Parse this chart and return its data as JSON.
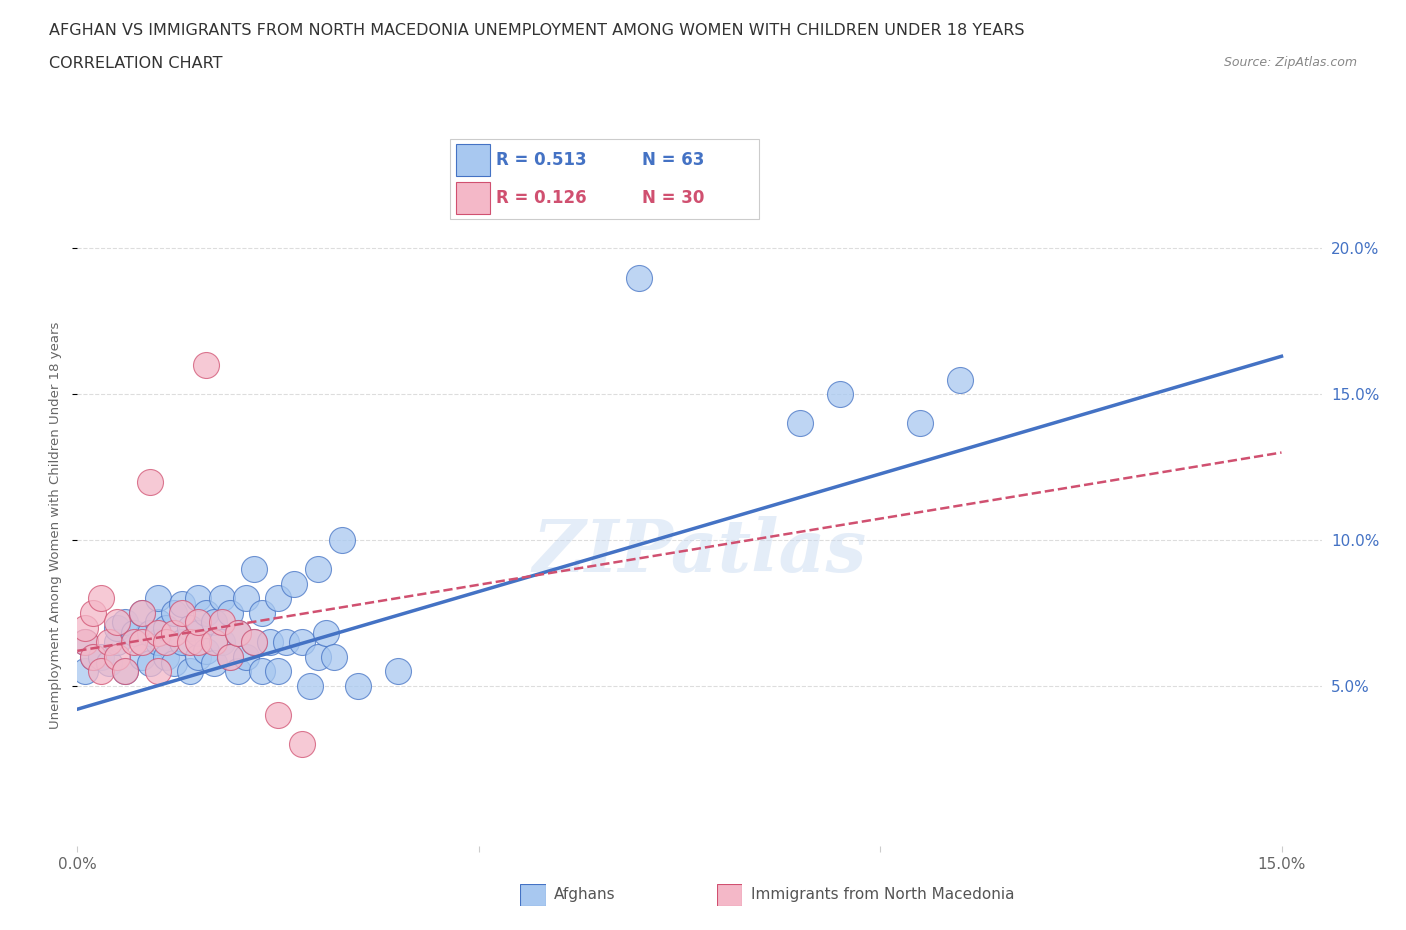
{
  "title_line1": "AFGHAN VS IMMIGRANTS FROM NORTH MACEDONIA UNEMPLOYMENT AMONG WOMEN WITH CHILDREN UNDER 18 YEARS",
  "title_line2": "CORRELATION CHART",
  "source": "Source: ZipAtlas.com",
  "ylabel": "Unemployment Among Women with Children Under 18 years",
  "xlim": [
    0.0,
    0.155
  ],
  "ylim": [
    -0.005,
    0.215
  ],
  "xticks": [
    0.0,
    0.05,
    0.1,
    0.15
  ],
  "xtick_labels": [
    "0.0%",
    "",
    "",
    "15.0%"
  ],
  "yticks": [
    0.05,
    0.1,
    0.15,
    0.2
  ],
  "ytick_labels": [
    "5.0%",
    "10.0%",
    "15.0%",
    "20.0%"
  ],
  "legend_R1": "0.513",
  "legend_N1": "63",
  "legend_R2": "0.126",
  "legend_N2": "30",
  "color_afghan": "#a8c8f0",
  "color_afghan_edge": "#4472c4",
  "color_macedonia": "#f4b8c8",
  "color_macedonia_edge": "#d05070",
  "color_line_blue": "#4472c4",
  "color_line_pink": "#d05070",
  "watermark": "ZIPatlas",
  "afghans_x": [
    0.001,
    0.001,
    0.002,
    0.003,
    0.004,
    0.005,
    0.005,
    0.006,
    0.006,
    0.007,
    0.008,
    0.008,
    0.009,
    0.009,
    0.01,
    0.01,
    0.01,
    0.011,
    0.011,
    0.012,
    0.012,
    0.013,
    0.013,
    0.014,
    0.014,
    0.015,
    0.015,
    0.015,
    0.016,
    0.016,
    0.017,
    0.017,
    0.018,
    0.018,
    0.019,
    0.019,
    0.02,
    0.02,
    0.021,
    0.021,
    0.022,
    0.022,
    0.023,
    0.023,
    0.024,
    0.025,
    0.025,
    0.026,
    0.027,
    0.028,
    0.029,
    0.03,
    0.03,
    0.031,
    0.032,
    0.033,
    0.035,
    0.04,
    0.07,
    0.09,
    0.095,
    0.105,
    0.11
  ],
  "afghans_y": [
    0.055,
    0.065,
    0.06,
    0.06,
    0.058,
    0.065,
    0.07,
    0.055,
    0.072,
    0.068,
    0.06,
    0.075,
    0.058,
    0.068,
    0.065,
    0.072,
    0.08,
    0.06,
    0.07,
    0.058,
    0.075,
    0.065,
    0.078,
    0.055,
    0.07,
    0.06,
    0.068,
    0.08,
    0.062,
    0.075,
    0.058,
    0.072,
    0.065,
    0.08,
    0.06,
    0.075,
    0.055,
    0.068,
    0.06,
    0.08,
    0.065,
    0.09,
    0.055,
    0.075,
    0.065,
    0.055,
    0.08,
    0.065,
    0.085,
    0.065,
    0.05,
    0.06,
    0.09,
    0.068,
    0.06,
    0.1,
    0.05,
    0.055,
    0.19,
    0.14,
    0.15,
    0.14,
    0.155
  ],
  "macedonia_x": [
    0.001,
    0.001,
    0.002,
    0.002,
    0.003,
    0.003,
    0.004,
    0.005,
    0.005,
    0.006,
    0.007,
    0.008,
    0.008,
    0.009,
    0.01,
    0.01,
    0.011,
    0.012,
    0.013,
    0.014,
    0.015,
    0.015,
    0.016,
    0.017,
    0.018,
    0.019,
    0.02,
    0.022,
    0.025,
    0.028
  ],
  "macedonia_y": [
    0.065,
    0.07,
    0.06,
    0.075,
    0.055,
    0.08,
    0.065,
    0.06,
    0.072,
    0.055,
    0.065,
    0.075,
    0.065,
    0.12,
    0.055,
    0.068,
    0.065,
    0.068,
    0.075,
    0.065,
    0.065,
    0.072,
    0.16,
    0.065,
    0.072,
    0.06,
    0.068,
    0.065,
    0.04,
    0.03
  ],
  "regression_blue_x0": 0.0,
  "regression_blue_y0": 0.042,
  "regression_blue_x1": 0.15,
  "regression_blue_y1": 0.163,
  "regression_pink_x0": 0.0,
  "regression_pink_y0": 0.062,
  "regression_pink_x1": 0.15,
  "regression_pink_y1": 0.13
}
